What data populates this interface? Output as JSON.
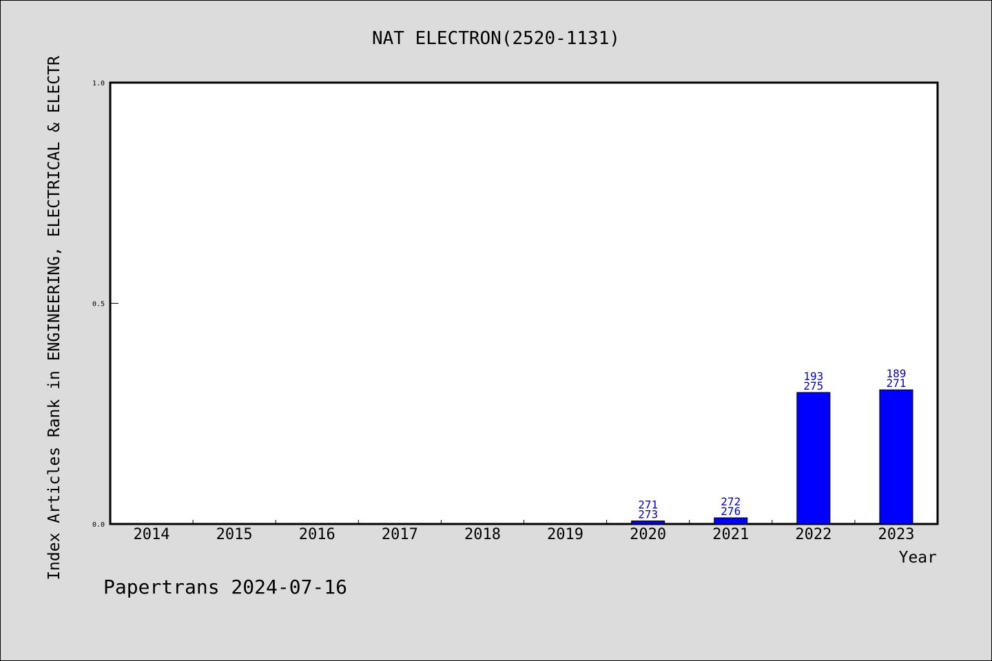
{
  "chart_data": {
    "type": "bar",
    "title": "NAT ELECTRON(2520-1131)",
    "xlabel": "Year",
    "ylabel": "Index Articles Rank in ENGINEERING, ELECTRICAL & ELECTR",
    "categories": [
      "2014",
      "2015",
      "2016",
      "2017",
      "2018",
      "2019",
      "2020",
      "2021",
      "2022",
      "2023"
    ],
    "values": [
      null,
      null,
      null,
      null,
      null,
      null,
      0.007,
      0.014,
      0.298,
      0.304
    ],
    "bar_labels": [
      null,
      null,
      null,
      null,
      null,
      null,
      [
        "271",
        "273"
      ],
      [
        "272",
        "276"
      ],
      [
        "193",
        "275"
      ],
      [
        "189",
        "271"
      ]
    ],
    "ylim": [
      0.0,
      1.0
    ],
    "yticks": [
      "0.0",
      "0.5",
      "1.0"
    ],
    "bar_color": "#0000ff",
    "label_color": "#0000cc",
    "plot_background": "#ffffff",
    "figure_background": "#dcdcdc",
    "grid": false,
    "legend": "none"
  },
  "footer": {
    "text": "Papertrans 2024-07-16"
  }
}
